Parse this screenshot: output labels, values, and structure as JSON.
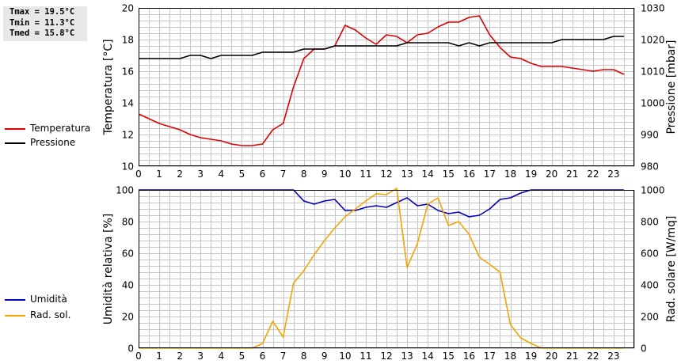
{
  "stats": {
    "tmax": "Tmax = 19.5°C",
    "tmin": "Tmin = 11.3°C",
    "tmed": "Tmed = 15.8°C"
  },
  "colors": {
    "temperature": "#dd0000",
    "pressure": "#000000",
    "humidity": "#0000bb",
    "radiation": "#f5a300",
    "grid": "#c8c8c8"
  },
  "chart_data": [
    {
      "type": "line",
      "title": "",
      "xlabel": "",
      "ylabel": "Temperatura [°C]",
      "y2label": "Pressione [mbar]",
      "xlim": [
        0,
        24
      ],
      "ylim": [
        10,
        20
      ],
      "y2lim": [
        980,
        1030
      ],
      "xticks": [
        0,
        1,
        2,
        3,
        4,
        5,
        6,
        7,
        8,
        9,
        10,
        11,
        12,
        13,
        14,
        15,
        16,
        17,
        18,
        19,
        20,
        21,
        22,
        23
      ],
      "yticks": [
        10,
        12,
        14,
        16,
        18,
        20
      ],
      "y2ticks": [
        980,
        990,
        1000,
        1010,
        1020,
        1030
      ],
      "grid": true,
      "legend": "left",
      "series": [
        {
          "name": "Temperatura",
          "axis": "left",
          "x": [
            0,
            0.5,
            1,
            1.5,
            2,
            2.5,
            3,
            3.5,
            4,
            4.5,
            5,
            5.5,
            6,
            6.5,
            7,
            7.5,
            8,
            8.5,
            9,
            9.5,
            10,
            10.5,
            11,
            11.5,
            12,
            12.5,
            13,
            13.5,
            14,
            14.5,
            15,
            15.5,
            16,
            16.5,
            17,
            17.5,
            18,
            18.5,
            19,
            19.5,
            20,
            20.5,
            21,
            21.5,
            22,
            22.5,
            23,
            23.5
          ],
          "values": [
            13.3,
            13.0,
            12.7,
            12.5,
            12.3,
            12.0,
            11.8,
            11.7,
            11.6,
            11.4,
            11.3,
            11.3,
            11.4,
            12.3,
            12.7,
            15.0,
            16.8,
            17.4,
            17.4,
            17.6,
            18.9,
            18.6,
            18.1,
            17.7,
            18.3,
            18.2,
            17.8,
            18.3,
            18.4,
            18.8,
            19.1,
            19.1,
            19.4,
            19.5,
            18.3,
            17.5,
            16.9,
            16.8,
            16.5,
            16.3,
            16.3,
            16.3,
            16.2,
            16.1,
            16.0,
            16.1,
            16.1,
            15.8
          ]
        },
        {
          "name": "Pressione",
          "axis": "right",
          "x": [
            0,
            0.5,
            1,
            1.5,
            2,
            2.5,
            3,
            3.5,
            4,
            4.5,
            5,
            5.5,
            6,
            6.5,
            7,
            7.5,
            8,
            8.5,
            9,
            9.5,
            10,
            10.5,
            11,
            11.5,
            12,
            12.5,
            13,
            13.5,
            14,
            14.5,
            15,
            15.5,
            16,
            16.5,
            17,
            17.5,
            18,
            18.5,
            19,
            19.5,
            20,
            20.5,
            21,
            21.5,
            22,
            22.5,
            23,
            23.5
          ],
          "values": [
            1014,
            1014,
            1014,
            1014,
            1014,
            1015,
            1015,
            1014,
            1015,
            1015,
            1015,
            1015,
            1016,
            1016,
            1016,
            1016,
            1017,
            1017,
            1017,
            1018,
            1018,
            1018,
            1018,
            1018,
            1018,
            1018,
            1019,
            1019,
            1019,
            1019,
            1019,
            1018,
            1019,
            1018,
            1019,
            1019,
            1019,
            1019,
            1019,
            1019,
            1019,
            1020,
            1020,
            1020,
            1020,
            1020,
            1021,
            1021
          ]
        }
      ]
    },
    {
      "type": "line",
      "title": "",
      "xlabel": "",
      "ylabel": "Umidità relativa [%]",
      "y2label": "Rad. solare [W/mq]",
      "xlim": [
        0,
        24
      ],
      "ylim": [
        0,
        100
      ],
      "y2lim": [
        0,
        1000
      ],
      "xticks": [
        0,
        1,
        2,
        3,
        4,
        5,
        6,
        7,
        8,
        9,
        10,
        11,
        12,
        13,
        14,
        15,
        16,
        17,
        18,
        19,
        20,
        21,
        22,
        23
      ],
      "yticks": [
        0,
        20,
        40,
        60,
        80,
        100
      ],
      "y2ticks": [
        0,
        200,
        400,
        600,
        800,
        1000
      ],
      "grid": true,
      "legend": "left",
      "series": [
        {
          "name": "Umidità",
          "axis": "left",
          "x": [
            0,
            0.5,
            1,
            1.5,
            2,
            2.5,
            3,
            3.5,
            4,
            4.5,
            5,
            5.5,
            6,
            6.5,
            7,
            7.5,
            8,
            8.5,
            9,
            9.5,
            10,
            10.5,
            11,
            11.5,
            12,
            12.5,
            13,
            13.5,
            14,
            14.5,
            15,
            15.5,
            16,
            16.5,
            17,
            17.5,
            18,
            18.5,
            19,
            19.5,
            20,
            20.5,
            21,
            21.5,
            22,
            22.5,
            23,
            23.5
          ],
          "values": [
            100,
            100,
            100,
            100,
            100,
            100,
            100,
            100,
            100,
            100,
            100,
            100,
            100,
            100,
            100,
            100,
            93,
            91,
            93,
            94,
            87,
            87,
            89,
            90,
            89,
            92,
            95,
            90,
            91,
            87,
            85,
            86,
            83,
            84,
            88,
            94,
            95,
            98,
            100,
            100,
            100,
            100,
            100,
            100,
            100,
            100,
            100,
            100
          ]
        },
        {
          "name": "Rad. sol.",
          "axis": "right",
          "x": [
            0,
            0.5,
            1,
            1.5,
            2,
            2.5,
            3,
            3.5,
            4,
            4.5,
            5,
            5.5,
            6,
            6.5,
            7,
            7.5,
            8,
            8.5,
            9,
            9.5,
            10,
            10.5,
            11,
            11.5,
            12,
            12.5,
            13,
            13.5,
            14,
            14.5,
            15,
            15.5,
            16,
            16.5,
            17,
            17.5,
            18,
            18.5,
            19,
            19.5,
            20,
            20.5,
            21,
            21.5,
            22,
            22.5,
            23,
            23.5
          ],
          "values": [
            0,
            0,
            0,
            0,
            0,
            0,
            0,
            0,
            0,
            0,
            0,
            0,
            30,
            170,
            70,
            410,
            490,
            590,
            680,
            760,
            830,
            880,
            930,
            975,
            970,
            1010,
            510,
            660,
            910,
            950,
            775,
            800,
            720,
            575,
            530,
            480,
            150,
            65,
            30,
            0,
            0,
            0,
            0,
            0,
            0,
            0,
            0,
            0
          ]
        }
      ]
    }
  ]
}
